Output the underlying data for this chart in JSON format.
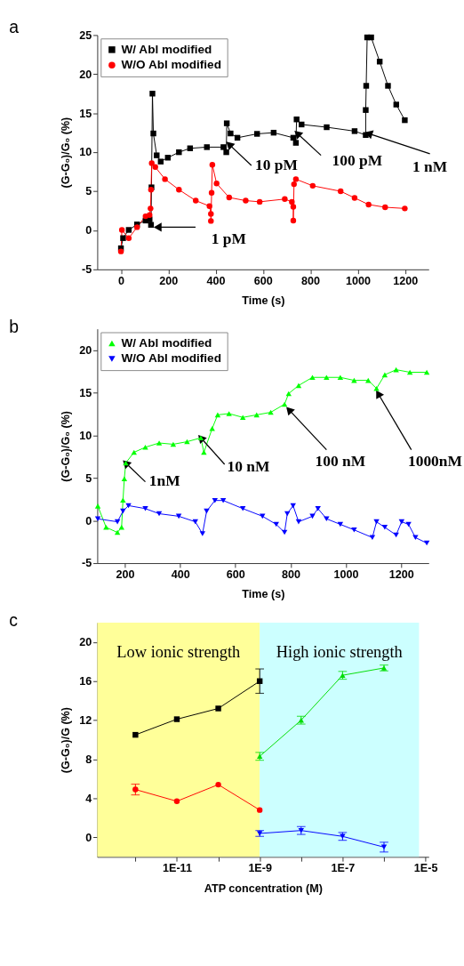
{
  "chart_data": [
    {
      "type": "line",
      "title": "a",
      "xlabel": "Time (s)",
      "ylabel": "(G-G₀)/G₀ (%)",
      "xlim": [
        -100,
        1300
      ],
      "ylim": [
        -5,
        25
      ],
      "xticks": [
        0,
        200,
        400,
        600,
        800,
        1000,
        1200
      ],
      "yticks": [
        -5,
        0,
        5,
        10,
        15,
        20,
        25
      ],
      "grid": false,
      "legend": "top left",
      "series": [
        {
          "name": "W/ Abl modified",
          "color": "#000000",
          "marker": "square",
          "x": [
            0,
            9,
            33,
            68,
            104,
            121,
            127,
            129,
            133,
            137,
            151,
            168,
            198,
            245,
            292,
            363,
            433,
            445,
            447,
            463,
            492,
            575,
            645,
            728,
            739,
            742,
            763,
            869,
            987,
            1034,
            1034,
            1036,
            1040,
            1057,
            1093,
            1128,
            1163,
            1199
          ],
          "values": [
            -2.3,
            -1.0,
            0.05,
            0.75,
            1.25,
            1.4,
            0.7,
            5.5,
            17.5,
            12.4,
            9.6,
            8.8,
            9.3,
            10.0,
            10.5,
            10.65,
            10.65,
            10.0,
            13.7,
            12.4,
            11.85,
            12.35,
            12.5,
            11.85,
            11.2,
            14.2,
            13.55,
            13.2,
            12.7,
            12.2,
            15.4,
            18.5,
            24.7,
            24.7,
            21.6,
            18.5,
            16.1,
            14.1
          ]
        },
        {
          "name": "W/O Abl modified",
          "color": "#ff0000",
          "marker": "circle",
          "x": [
            0,
            4,
            33,
            68,
            104,
            121,
            125,
            127,
            130,
            145,
            186,
            245,
            316,
            374,
            380,
            380,
            383,
            386,
            404,
            457,
            527,
            586,
            692,
            722,
            728,
            728,
            731,
            739,
            810,
            928,
            987,
            1046,
            1116,
            1199
          ],
          "values": [
            -2.7,
            0.05,
            -1.0,
            0.4,
            1.8,
            1.95,
            2.8,
            5.2,
            8.6,
            8.1,
            6.55,
            5.2,
            3.8,
            3.1,
            2.1,
            1.2,
            4.8,
            8.4,
            6.0,
            4.2,
            3.8,
            3.65,
            4.0,
            3.65,
            3.0,
            1.25,
            5.9,
            6.55,
            5.7,
            5.0,
            4.15,
            3.3,
            2.95,
            2.8
          ]
        }
      ],
      "annotations": [
        {
          "text": "1 pM",
          "x": 155,
          "y": 0.4
        },
        {
          "text": "10 pM",
          "x": 457,
          "y": 11.0
        },
        {
          "text": "100 pM",
          "x": 745,
          "y": 12.4
        },
        {
          "text": "1 nM",
          "x": 1046,
          "y": 12.4
        }
      ]
    },
    {
      "type": "line",
      "title": "b",
      "xlabel": "Time (s)",
      "ylabel": "(G-G₀)/G₀ (%)",
      "xlim": [
        100,
        1300
      ],
      "ylim": [
        -5,
        22.5
      ],
      "xticks": [
        200,
        400,
        600,
        800,
        1000,
        1200
      ],
      "yticks": [
        -5,
        0,
        5,
        10,
        15,
        20
      ],
      "grid": false,
      "legend": "top left",
      "series": [
        {
          "name": "W/ Abl modified",
          "color": "#00ff00",
          "marker": "triangle",
          "x": [
            102,
            132,
            173,
            188,
            193,
            198,
            203,
            233,
            274,
            324,
            375,
            425,
            475,
            486,
            516,
            536,
            577,
            627,
            677,
            728,
            778,
            793,
            829,
            879,
            930,
            980,
            1030,
            1081,
            1111,
            1141,
            1182,
            1232,
            1293
          ],
          "values": [
            1.7,
            -0.8,
            -1.4,
            -0.8,
            2.4,
            4.9,
            6.75,
            8.0,
            8.6,
            9.1,
            8.95,
            9.25,
            9.7,
            8.0,
            10.8,
            12.4,
            12.55,
            12.1,
            12.4,
            12.7,
            13.65,
            14.9,
            15.85,
            16.8,
            16.8,
            16.8,
            16.45,
            16.45,
            15.5,
            17.1,
            17.7,
            17.4,
            17.4
          ]
        },
        {
          "name": "W/O Abl modified",
          "color": "#0000ff",
          "marker": "triangle-down",
          "x": [
            102,
            173,
            193,
            213,
            274,
            324,
            395,
            455,
            481,
            496,
            526,
            556,
            627,
            698,
            748,
            778,
            788,
            809,
            829,
            879,
            899,
            930,
            980,
            1030,
            1096,
            1111,
            1141,
            1182,
            1202,
            1227,
            1252,
            1293
          ],
          "values": [
            0.2,
            -0.15,
            1.1,
            1.75,
            1.4,
            0.8,
            0.5,
            -0.15,
            -1.55,
            1.1,
            2.35,
            2.35,
            1.4,
            0.5,
            -0.45,
            -1.4,
            0.8,
            1.75,
            -0.15,
            0.5,
            1.4,
            0.2,
            -0.45,
            -1.1,
            -2.0,
            -0.15,
            -0.8,
            -1.7,
            -0.15,
            -0.45,
            -2.0,
            -2.65
          ]
        }
      ],
      "annotations": [
        {
          "text": "1nM",
          "x": 203,
          "y": 6.75
        },
        {
          "text": "10 nM",
          "x": 475,
          "y": 9.7
        },
        {
          "text": "100 nM",
          "x": 794,
          "y": 13.0
        },
        {
          "text": "1000nM",
          "x": 1117,
          "y": 14.9
        }
      ]
    },
    {
      "type": "line",
      "title": "c",
      "xlabel": "ATP concentration (M)",
      "ylabel": "(G-G₀)/G (%)",
      "log": "x",
      "xlim": [
        1.2e-13,
        1.2e-05
      ],
      "ylim": [
        -2,
        22
      ],
      "xticks": [
        {
          "value": 1e-12,
          "label": null
        },
        {
          "value": 1e-11,
          "label": "1E-11"
        },
        {
          "value": 1e-10,
          "label": null
        },
        {
          "value": 1e-09,
          "label": "1E-9"
        },
        {
          "value": 1e-08,
          "label": null
        },
        {
          "value": 1e-07,
          "label": "1E-7"
        },
        {
          "value": 1e-06,
          "label": null
        },
        {
          "value": 1e-05,
          "label": "1E-5"
        }
      ],
      "yticks": [
        0,
        4,
        8,
        12,
        16,
        20
      ],
      "grid": false,
      "bands": [
        {
          "axis": "x",
          "from": 1.2e-13,
          "to": 1e-09,
          "label": "Low ionic strength",
          "color": "#ffff99"
        },
        {
          "axis": "x",
          "from": 1e-09,
          "to": 7e-06,
          "label": "High ionic strength",
          "color": "#ccffff"
        }
      ],
      "series": [
        {
          "color": "#000000",
          "marker": "square",
          "x": [
            1e-12,
            1e-11,
            1e-10,
            1e-09
          ],
          "values": [
            10.5,
            12.1,
            13.2,
            16.0
          ],
          "errors": [
            null,
            null,
            null,
            1.25
          ]
        },
        {
          "color": "#ff0000",
          "marker": "circle",
          "x": [
            1e-12,
            1e-11,
            1e-10,
            1e-09
          ],
          "values": [
            4.9,
            3.7,
            5.4,
            2.8
          ],
          "errors": [
            0.55,
            null,
            null,
            null
          ]
        },
        {
          "color": "#00dd00",
          "marker": "triangle",
          "x": [
            1e-09,
            1e-08,
            1e-07,
            1e-06
          ],
          "values": [
            8.3,
            12.0,
            16.6,
            17.35
          ],
          "errors": [
            0.4,
            0.4,
            0.4,
            0.3
          ]
        },
        {
          "color": "#0000ff",
          "marker": "triangle-down",
          "x": [
            1e-09,
            1e-08,
            1e-07,
            1e-06
          ],
          "values": [
            0.4,
            0.7,
            0.1,
            -1.0
          ],
          "errors": [
            0.3,
            0.4,
            0.4,
            0.5
          ]
        }
      ]
    }
  ]
}
